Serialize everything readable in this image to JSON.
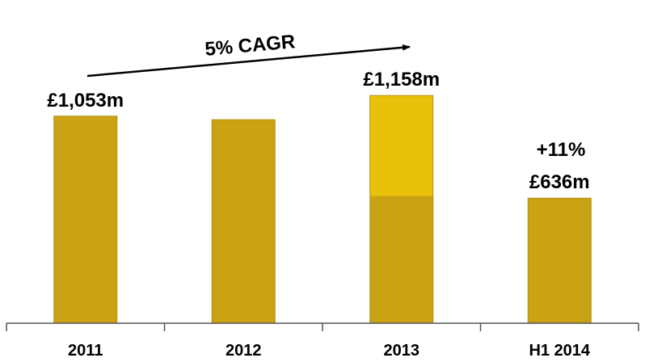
{
  "chart_data": {
    "type": "bar",
    "categories": [
      "2011",
      "2012",
      "2013",
      "H1 2014"
    ],
    "values": [
      1053,
      1035,
      1158,
      636
    ],
    "value_labels": [
      "£1,053m",
      "",
      "£1,158m",
      "£636m"
    ],
    "growth_label": "+11%",
    "annotation": "5% CAGR",
    "title": "",
    "xlabel": "",
    "ylabel": "",
    "ylim": [
      0,
      1200
    ],
    "grid": false,
    "legend": "none",
    "colors": {
      "bar_fill": "#c9a313",
      "bar_fill_2013_upper": "#e8c10a",
      "bar_edge": "#b48c0c",
      "axis": "#555555",
      "text": "#000000"
    }
  }
}
